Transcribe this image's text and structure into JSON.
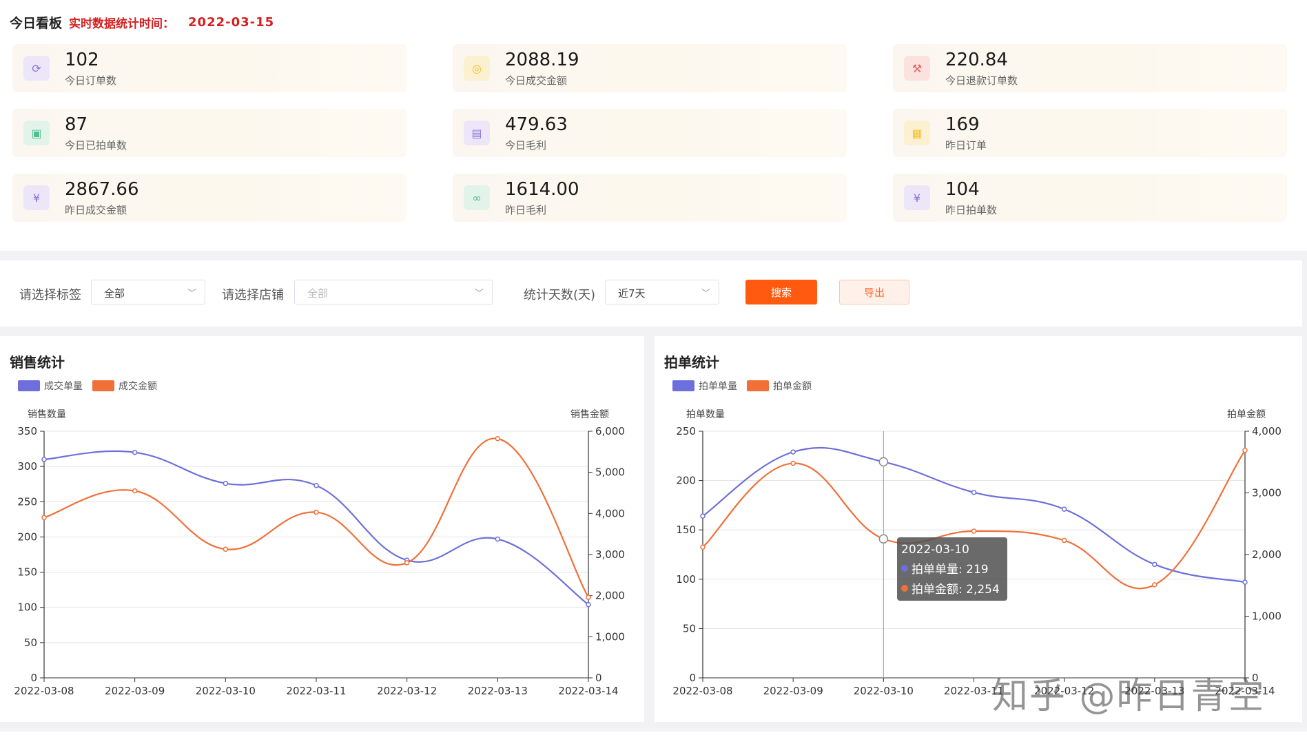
{
  "board": {
    "title": "今日看板",
    "subtitle": "实时数据统计时间：",
    "date": "2022-03-15"
  },
  "cards": [
    {
      "value": "102",
      "label": "今日订单数",
      "icon": "refresh-icon",
      "icon_color": "#8b6fd6",
      "icon_bg": "#ece6f8"
    },
    {
      "value": "2088.19",
      "label": "今日成交金额",
      "icon": "coins-icon",
      "icon_color": "#f2c230",
      "icon_bg": "#fbf0d0"
    },
    {
      "value": "220.84",
      "label": "今日退款订单数",
      "icon": "gavel-icon",
      "icon_color": "#e8605a",
      "icon_bg": "#fbe2de"
    },
    {
      "value": "87",
      "label": "今日已拍单数",
      "icon": "tablet-icon",
      "icon_color": "#4cbf8c",
      "icon_bg": "#e2f3ea"
    },
    {
      "value": "479.63",
      "label": "今日毛利",
      "icon": "wallet-icon",
      "icon_color": "#8b6fd6",
      "icon_bg": "#ece6f8"
    },
    {
      "value": "169",
      "label": "昨日订单",
      "icon": "note-icon",
      "icon_color": "#f2c230",
      "icon_bg": "#fbf0d0"
    },
    {
      "value": "2867.66",
      "label": "昨日成交金额",
      "icon": "money-icon",
      "icon_color": "#8b6fd6",
      "icon_bg": "#ece6f8"
    },
    {
      "value": "1614.00",
      "label": "昨日毛利",
      "icon": "link-icon",
      "icon_color": "#4cbf8c",
      "icon_bg": "#e2f3ea"
    },
    {
      "value": "104",
      "label": "昨日拍单数",
      "icon": "money-icon",
      "icon_color": "#8b6fd6",
      "icon_bg": "#ece6f8"
    }
  ],
  "filter": {
    "tag_label": "请选择标签",
    "tag_value": "全部",
    "store_label": "请选择店铺",
    "store_value": "全部",
    "days_label": "统计天数(天)",
    "days_value": "近7天",
    "search_label": "搜索",
    "export_label": "导出"
  },
  "chart_data": [
    {
      "type": "line",
      "title": "销售统计",
      "x": [
        "2022-03-08",
        "2022-03-09",
        "2022-03-10",
        "2022-03-11",
        "2022-03-12",
        "2022-03-13",
        "2022-03-14"
      ],
      "ylabel": "销售数量",
      "y2label": "销售金额",
      "ylim": [
        0,
        350
      ],
      "y_ticks": [
        0,
        50,
        100,
        150,
        200,
        250,
        300,
        350
      ],
      "y2lim": [
        0,
        6000
      ],
      "y2_ticks": [
        0,
        1000,
        2000,
        3000,
        4000,
        5000,
        6000
      ],
      "y2_tick_labels": [
        "0",
        "1,000",
        "2,000",
        "3,000",
        "4,000",
        "5,000",
        "6,000"
      ],
      "grid": true,
      "legend_position": "top-left",
      "series": [
        {
          "name": "成交单量",
          "axis": "left",
          "color": "#6d6fdc",
          "values": [
            310,
            320,
            276,
            273,
            167,
            197,
            104
          ]
        },
        {
          "name": "成交金额",
          "axis": "right",
          "color": "#f07038",
          "values": [
            3900,
            4550,
            3130,
            4030,
            2800,
            5820,
            1960
          ]
        }
      ]
    },
    {
      "type": "line",
      "title": "拍单统计",
      "x": [
        "2022-03-08",
        "2022-03-09",
        "2022-03-10",
        "2022-03-11",
        "2022-03-12",
        "2022-03-13",
        "2022-03-14"
      ],
      "ylabel": "拍单数量",
      "y2label": "拍单金额",
      "ylim": [
        0,
        250
      ],
      "y_ticks": [
        0,
        50,
        100,
        150,
        200,
        250
      ],
      "y2lim": [
        0,
        4000
      ],
      "y2_ticks": [
        0,
        1000,
        2000,
        3000,
        4000
      ],
      "y2_tick_labels": [
        "0",
        "1,000",
        "2,000",
        "3,000",
        "4,000"
      ],
      "grid": true,
      "legend_position": "top-left",
      "series": [
        {
          "name": "拍单单量",
          "axis": "left",
          "color": "#6d6fdc",
          "values": [
            164,
            229,
            219,
            188,
            171,
            115,
            97
          ]
        },
        {
          "name": "拍单金额",
          "axis": "right",
          "color": "#f07038",
          "values": [
            2120,
            3480,
            2254,
            2380,
            2230,
            1510,
            3690
          ]
        }
      ],
      "tooltip": {
        "date": "2022-03-10",
        "row1": "拍单单量: 219",
        "row2": "拍单金额: 2,254"
      }
    }
  ],
  "watermark": "知乎 @昨日青空"
}
